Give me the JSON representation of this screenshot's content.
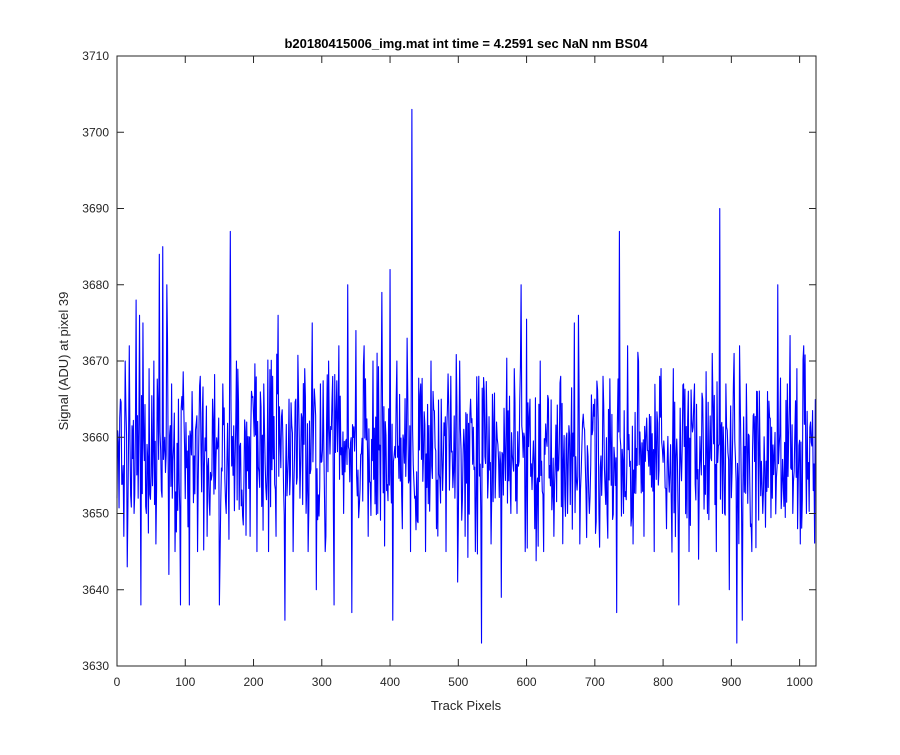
{
  "chart_data": {
    "type": "line",
    "title": "b20180415006_img.mat int time = 4.2591 sec  NaN nm BS04",
    "xlabel": "Track Pixels",
    "ylabel": "Signal (ADU) at pixel 39",
    "xlim": [
      0,
      1024
    ],
    "ylim": [
      3630,
      3710
    ],
    "xticks": [
      0,
      100,
      200,
      300,
      400,
      500,
      600,
      700,
      800,
      900,
      1000
    ],
    "yticks": [
      3630,
      3640,
      3650,
      3660,
      3670,
      3680,
      3690,
      3700,
      3710
    ],
    "grid": false,
    "legend": "none",
    "series_color": "#0000ff",
    "n_points": 1024,
    "series": [
      {
        "key_points": [
          [
            0,
            3652
          ],
          [
            5,
            3665
          ],
          [
            10,
            3647
          ],
          [
            12,
            3670
          ],
          [
            15,
            3643
          ],
          [
            18,
            3672
          ],
          [
            25,
            3650
          ],
          [
            28,
            3678
          ],
          [
            31,
            3652
          ],
          [
            33,
            3676
          ],
          [
            35,
            3638
          ],
          [
            38,
            3675
          ],
          [
            43,
            3650
          ],
          [
            47,
            3669
          ],
          [
            50,
            3655
          ],
          [
            54,
            3670
          ],
          [
            57,
            3646
          ],
          [
            62,
            3684
          ],
          [
            65,
            3653
          ],
          [
            67,
            3685
          ],
          [
            70,
            3660
          ],
          [
            73,
            3680
          ],
          [
            76,
            3642
          ],
          [
            80,
            3667
          ],
          [
            85,
            3645
          ],
          [
            90,
            3665
          ],
          [
            93,
            3638
          ],
          [
            98,
            3663
          ],
          [
            106,
            3638
          ],
          [
            110,
            3666
          ],
          [
            118,
            3645
          ],
          [
            122,
            3668
          ],
          [
            132,
            3647
          ],
          [
            140,
            3665
          ],
          [
            150,
            3638
          ],
          [
            155,
            3667
          ],
          [
            160,
            3650
          ],
          [
            166,
            3687
          ],
          [
            170,
            3655
          ],
          [
            175,
            3670
          ],
          [
            182,
            3651
          ],
          [
            190,
            3662
          ],
          [
            195,
            3647
          ],
          [
            200,
            3663
          ],
          [
            205,
            3645
          ],
          [
            215,
            3667
          ],
          [
            222,
            3645
          ],
          [
            228,
            3668
          ],
          [
            233,
            3647
          ],
          [
            238,
            3664
          ],
          [
            246,
            3636
          ],
          [
            252,
            3665
          ],
          [
            258,
            3645
          ],
          [
            262,
            3665
          ],
          [
            268,
            3652
          ],
          [
            275,
            3669
          ],
          [
            280,
            3645
          ],
          [
            286,
            3675
          ],
          [
            292,
            3640
          ],
          [
            298,
            3667
          ],
          [
            305,
            3645
          ],
          [
            310,
            3670
          ],
          [
            318,
            3638
          ],
          [
            325,
            3672
          ],
          [
            332,
            3650
          ],
          [
            338,
            3680
          ],
          [
            344,
            3637
          ],
          [
            350,
            3674
          ],
          [
            355,
            3651
          ],
          [
            362,
            3672
          ],
          [
            368,
            3647
          ],
          [
            375,
            3670
          ],
          [
            382,
            3650
          ],
          [
            388,
            3679
          ],
          [
            395,
            3653
          ],
          [
            400,
            3682
          ],
          [
            404,
            3636
          ],
          [
            410,
            3670
          ],
          [
            418,
            3648
          ],
          [
            425,
            3673
          ],
          [
            430,
            3645
          ],
          [
            432,
            3703
          ],
          [
            436,
            3652
          ],
          [
            445,
            3667
          ],
          [
            452,
            3645
          ],
          [
            460,
            3670
          ],
          [
            468,
            3648
          ],
          [
            475,
            3665
          ],
          [
            482,
            3645
          ],
          [
            489,
            3668
          ],
          [
            495,
            3652
          ],
          [
            502,
            3670
          ],
          [
            510,
            3647
          ],
          [
            518,
            3665
          ],
          [
            525,
            3645
          ],
          [
            530,
            3668
          ],
          [
            534,
            3633
          ],
          [
            538,
            3666
          ],
          [
            548,
            3646
          ],
          [
            556,
            3662
          ],
          [
            563,
            3639
          ],
          [
            570,
            3661
          ],
          [
            577,
            3650
          ],
          [
            582,
            3669
          ],
          [
            586,
            3650
          ],
          [
            592,
            3680
          ],
          [
            598,
            3645
          ],
          [
            605,
            3665
          ],
          [
            612,
            3648
          ],
          [
            620,
            3670
          ],
          [
            625,
            3645
          ],
          [
            632,
            3665
          ],
          [
            640,
            3647
          ],
          [
            650,
            3668
          ],
          [
            660,
            3650
          ],
          [
            670,
            3675
          ],
          [
            678,
            3646
          ],
          [
            685,
            3661
          ],
          [
            692,
            3650
          ],
          [
            700,
            3665
          ],
          [
            706,
            3650
          ],
          [
            712,
            3668
          ],
          [
            718,
            3650
          ],
          [
            725,
            3663
          ],
          [
            732,
            3637
          ],
          [
            736,
            3687
          ],
          [
            742,
            3650
          ],
          [
            748,
            3672
          ],
          [
            756,
            3646
          ],
          [
            764,
            3670
          ],
          [
            772,
            3647
          ],
          [
            780,
            3663
          ],
          [
            787,
            3645
          ],
          [
            795,
            3668
          ],
          [
            805,
            3648
          ],
          [
            815,
            3669
          ],
          [
            823,
            3638
          ],
          [
            830,
            3667
          ],
          [
            838,
            3645
          ],
          [
            846,
            3667
          ],
          [
            852,
            3644
          ],
          [
            858,
            3665
          ],
          [
            865,
            3650
          ],
          [
            872,
            3671
          ],
          [
            878,
            3645
          ],
          [
            883,
            3690
          ],
          [
            887,
            3650
          ],
          [
            892,
            3667
          ],
          [
            897,
            3640
          ],
          [
            904,
            3671
          ],
          [
            908,
            3633
          ],
          [
            912,
            3672
          ],
          [
            916,
            3636
          ],
          [
            922,
            3667
          ],
          [
            930,
            3645
          ],
          [
            938,
            3666
          ],
          [
            946,
            3650
          ],
          [
            953,
            3666
          ],
          [
            960,
            3652
          ],
          [
            968,
            3680
          ],
          [
            974,
            3653
          ],
          [
            982,
            3667
          ],
          [
            990,
            3650
          ],
          [
            996,
            3669
          ],
          [
            1001,
            3646
          ],
          [
            1006,
            3672
          ],
          [
            1010,
            3650
          ],
          [
            1016,
            3662
          ],
          [
            1020,
            3653
          ],
          [
            1023,
            3665
          ]
        ]
      }
    ]
  }
}
